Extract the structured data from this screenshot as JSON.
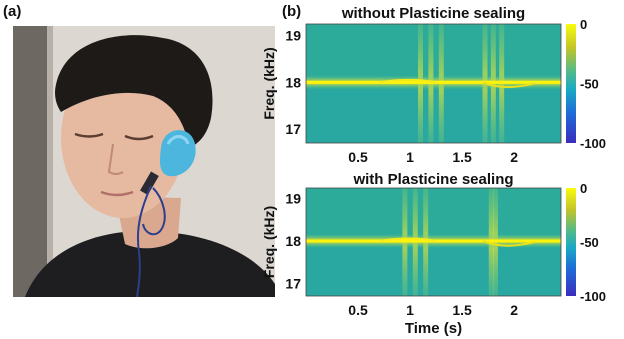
{
  "figure": {
    "panel_a_label": "(a)",
    "panel_b_label": "(b)"
  },
  "photo": {
    "subject": "person wearing a blue earpiece sealed with plasticine, cable running down the neck",
    "colors": {
      "wall": "#dcd7d0",
      "door": "#6e6862",
      "skin": "#e6b9a1",
      "hair": "#1d1a18",
      "shirt": "#1e1d20",
      "earpiece": "#4cb6df",
      "cable": "#2c3f8c"
    }
  },
  "chart_data": [
    {
      "type": "heatmap",
      "title": "without Plasticine sealing",
      "xlabel": "",
      "ylabel": "Freq. (kHz)",
      "x_ticks": [
        0.5,
        1,
        1.5,
        2
      ],
      "y_ticks": [
        19,
        18,
        17
      ],
      "xlim": [
        0,
        2.45
      ],
      "ylim": [
        16.7,
        19.25
      ],
      "colorbar": {
        "ticks": [
          0,
          -50,
          -100
        ],
        "range": [
          -100,
          0
        ]
      },
      "tone_khz": 18,
      "bursts_s": [
        1.1,
        1.2,
        1.3,
        1.72,
        1.8,
        1.88
      ]
    },
    {
      "type": "heatmap",
      "title": "with Plasticine sealing",
      "xlabel": "Time (s)",
      "ylabel": "Freq. (kHz)",
      "x_ticks": [
        0.5,
        1,
        1.5,
        2
      ],
      "y_ticks": [
        19,
        18,
        17
      ],
      "xlim": [
        0,
        2.45
      ],
      "ylim": [
        16.7,
        19.25
      ],
      "colorbar": {
        "ticks": [
          0,
          -50,
          -100
        ],
        "range": [
          -100,
          0
        ]
      },
      "tone_khz": 18,
      "bursts_s": [
        0.95,
        1.05,
        1.15,
        1.78,
        1.82
      ]
    }
  ]
}
